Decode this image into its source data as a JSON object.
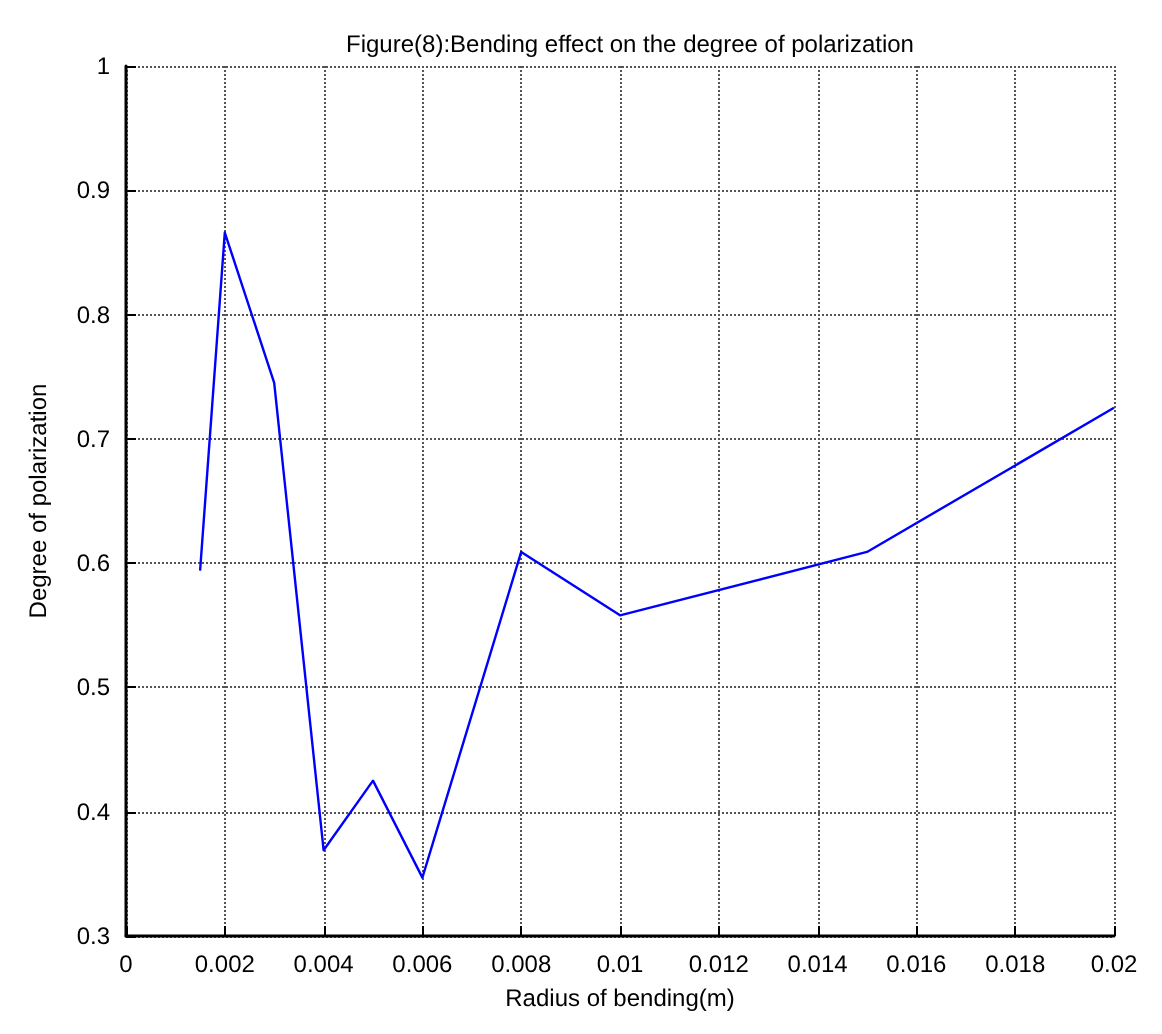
{
  "chart_data": {
    "type": "line",
    "title": "Figure(8):Bending effect on the degree of polarization",
    "xlabel": "Radius of bending(m)",
    "ylabel": "Degree of polarization",
    "x": [
      0.0015,
      0.002,
      0.003,
      0.004,
      0.005,
      0.006,
      0.008,
      0.01,
      0.015,
      0.02
    ],
    "series": [
      {
        "color": "#0000ff",
        "values": [
          0.594,
          0.866,
          0.745,
          0.369,
          0.425,
          0.347,
          0.609,
          0.558,
          0.609,
          0.725
        ]
      }
    ],
    "xlim": [
      0,
      0.02
    ],
    "xticks": [
      0,
      0.002,
      0.004,
      0.006,
      0.008,
      0.01,
      0.012,
      0.014,
      0.016,
      0.018,
      0.02
    ],
    "ylim": [
      0.3,
      1
    ],
    "yticks": [
      0.3,
      0.4,
      0.5,
      0.6,
      0.7,
      0.8,
      0.9,
      1
    ],
    "grid": true,
    "marker": "none",
    "line_style": "solid"
  }
}
